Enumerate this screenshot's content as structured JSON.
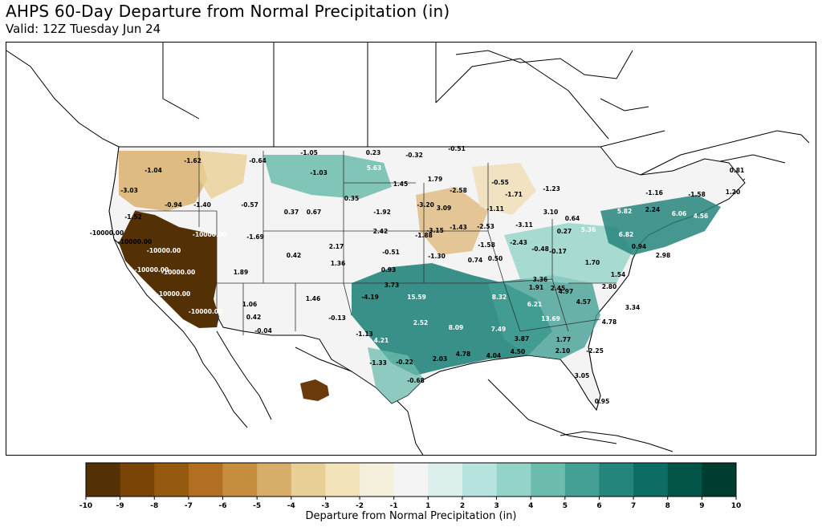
{
  "title": "AHPS 60-Day Departure from Normal Precipitation (in)",
  "subtitle": "Valid: 12Z Tuesday Jun 24",
  "colors": {
    "drought_dark": "#543005",
    "wet_dark": "#003c30",
    "neutral": "#f5f5f5"
  },
  "map": {
    "region": "Contiguous United States",
    "values": [
      {
        "text": "-1.62"
      },
      {
        "text": "-1.04"
      },
      {
        "text": "-3.03"
      },
      {
        "text": "-1.52"
      },
      {
        "text": "-0.94"
      },
      {
        "text": "-1.40"
      },
      {
        "text": "-0.57"
      },
      {
        "text": "-0.64"
      },
      {
        "text": "-1.05"
      },
      {
        "text": "-1.03"
      },
      {
        "text": "0.23"
      },
      {
        "text": "-0.32"
      },
      {
        "text": "-0.51"
      },
      {
        "text": "5.63"
      },
      {
        "text": "1.45"
      },
      {
        "text": "1.79"
      },
      {
        "text": "-2.58"
      },
      {
        "text": "-0.55"
      },
      {
        "text": "-1.71"
      },
      {
        "text": "-1.23"
      },
      {
        "text": "0.81"
      },
      {
        "text": "-1.16"
      },
      {
        "text": "-1.58"
      },
      {
        "text": "1.20"
      },
      {
        "text": "0.35"
      },
      {
        "text": "0.37"
      },
      {
        "text": "0.67"
      },
      {
        "text": "-1.92"
      },
      {
        "text": "-3.20"
      },
      {
        "text": "3.09"
      },
      {
        "text": "-1.11"
      },
      {
        "text": "3.10"
      },
      {
        "text": "0.64"
      },
      {
        "text": "5.82"
      },
      {
        "text": "2.24"
      },
      {
        "text": "6.06"
      },
      {
        "text": "4.56"
      },
      {
        "text": "-3.15"
      },
      {
        "text": "-1.43"
      },
      {
        "text": "-2.53"
      },
      {
        "text": "-3.11"
      },
      {
        "text": "2.42"
      },
      {
        "text": "-1.88"
      },
      {
        "text": "0.27"
      },
      {
        "text": "5.36"
      },
      {
        "text": "6.82"
      },
      {
        "text": "-1.69"
      },
      {
        "text": "2.17"
      },
      {
        "text": "-1.58"
      },
      {
        "text": "-2.43"
      },
      {
        "text": "0.42"
      },
      {
        "text": "-0.51"
      },
      {
        "text": "-1.30"
      },
      {
        "text": "0.74"
      },
      {
        "text": "0.50"
      },
      {
        "text": "-0.48"
      },
      {
        "text": "-0.17"
      },
      {
        "text": "0.94"
      },
      {
        "text": "2.98"
      },
      {
        "text": "1.36"
      },
      {
        "text": "1.89"
      },
      {
        "text": "0.93"
      },
      {
        "text": "1.70"
      },
      {
        "text": "1.54"
      },
      {
        "text": "3.36"
      },
      {
        "text": "2.45"
      },
      {
        "text": "1.06"
      },
      {
        "text": "1.46"
      },
      {
        "text": "3.73"
      },
      {
        "text": "1.91"
      },
      {
        "text": "4.97"
      },
      {
        "text": "2.80"
      },
      {
        "text": "-4.19"
      },
      {
        "text": "15.59"
      },
      {
        "text": "8.32"
      },
      {
        "text": "6.21"
      },
      {
        "text": "4.57"
      },
      {
        "text": "0.42"
      },
      {
        "text": "-0.13"
      },
      {
        "text": "3.34"
      },
      {
        "text": "-0.04"
      },
      {
        "text": "2.52"
      },
      {
        "text": "8.09"
      },
      {
        "text": "7.49"
      },
      {
        "text": "13.69"
      },
      {
        "text": "4.78"
      },
      {
        "text": "-1.13"
      },
      {
        "text": "4.21"
      },
      {
        "text": "1.77"
      },
      {
        "text": "3.87"
      },
      {
        "text": "2.10"
      },
      {
        "text": "-2.25"
      },
      {
        "text": "-1.33"
      },
      {
        "text": "-0.22"
      },
      {
        "text": "2.03"
      },
      {
        "text": "4.78"
      },
      {
        "text": "4.04"
      },
      {
        "text": "4.50"
      },
      {
        "text": "-0.68"
      },
      {
        "text": "3.05"
      },
      {
        "text": "0.95"
      },
      {
        "text": "-10000.00"
      },
      {
        "text": "-10000.00"
      },
      {
        "text": "-10000.00"
      },
      {
        "text": "-10000.00"
      },
      {
        "text": "-10000.00"
      },
      {
        "text": "-10000.00"
      },
      {
        "text": "-10000.00"
      },
      {
        "text": "-10000.00"
      }
    ]
  },
  "colorbar": {
    "label": "Departure from Normal Precipitation (in)",
    "ticks": [
      "-10",
      "-9",
      "-8",
      "-7",
      "-6",
      "-5",
      "-4",
      "-3",
      "-2",
      "-1",
      "1",
      "2",
      "3",
      "4",
      "5",
      "6",
      "7",
      "8",
      "9",
      "10"
    ],
    "colors": [
      "#543005",
      "#7a4407",
      "#955a0f",
      "#b26f22",
      "#c78d3f",
      "#d7ae69",
      "#e8cf95",
      "#f3e3ba",
      "#f5f0db",
      "#f4f4f4",
      "#dcefed",
      "#b8e4df",
      "#93d3c8",
      "#6cbcae",
      "#44a095",
      "#24857c",
      "#0d6c63",
      "#035548",
      "#003c30"
    ]
  }
}
